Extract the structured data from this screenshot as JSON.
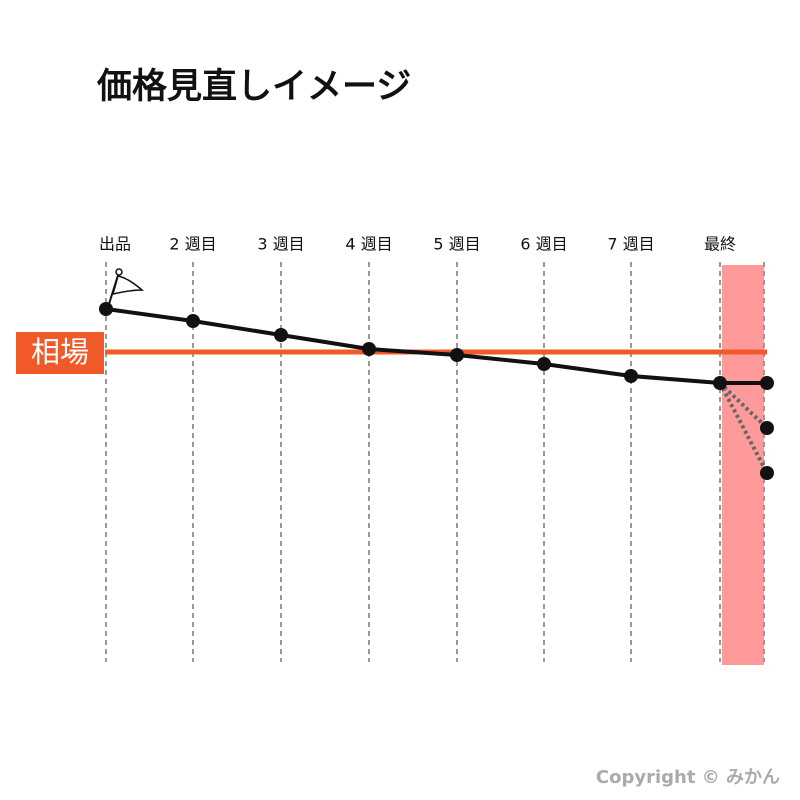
{
  "header": {
    "title": "価格見直しイメージ"
  },
  "columns": [
    "出品",
    "2 週目",
    "3 週目",
    "4 週目",
    "5 週目",
    "6 週目",
    "7 週目",
    "最終"
  ],
  "market_label": "相場",
  "copyright": "Copyright © みかん"
}
